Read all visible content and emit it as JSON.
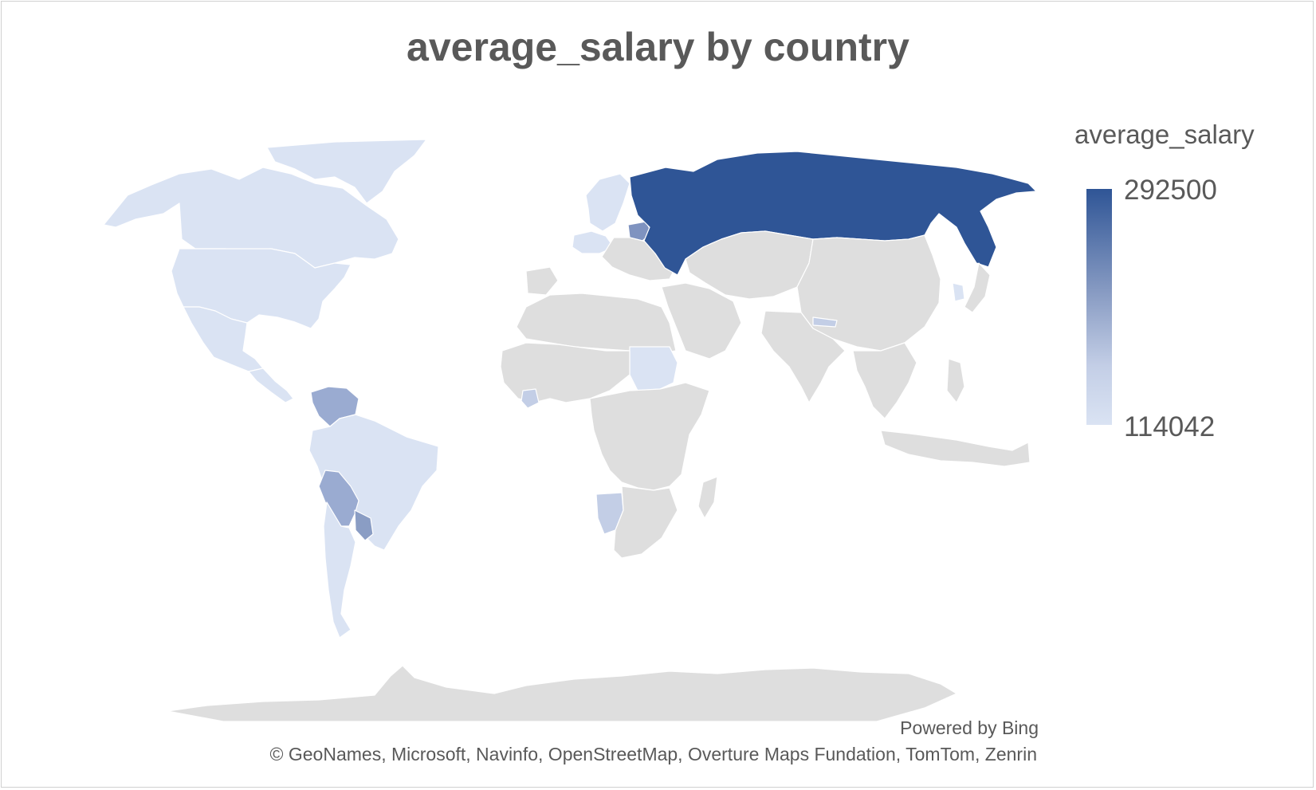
{
  "title": "average_salary by country",
  "chart_data": {
    "type": "choropleth-map",
    "value_field": "average_salary",
    "legend": {
      "title": "average_salary",
      "max_label": "292500",
      "min_label": "114042",
      "max": 292500,
      "min": 114042,
      "color_high": "#2f5596",
      "color_low": "#dae3f3",
      "placement": "right"
    },
    "no_data_color": "#dedede"
  },
  "attribution": {
    "powered_by": "Powered by Bing",
    "credits": "© GeoNames, Microsoft, Navinfo, OpenStreetMap, Overture Maps Fundation, TomTom, Zenrin"
  }
}
